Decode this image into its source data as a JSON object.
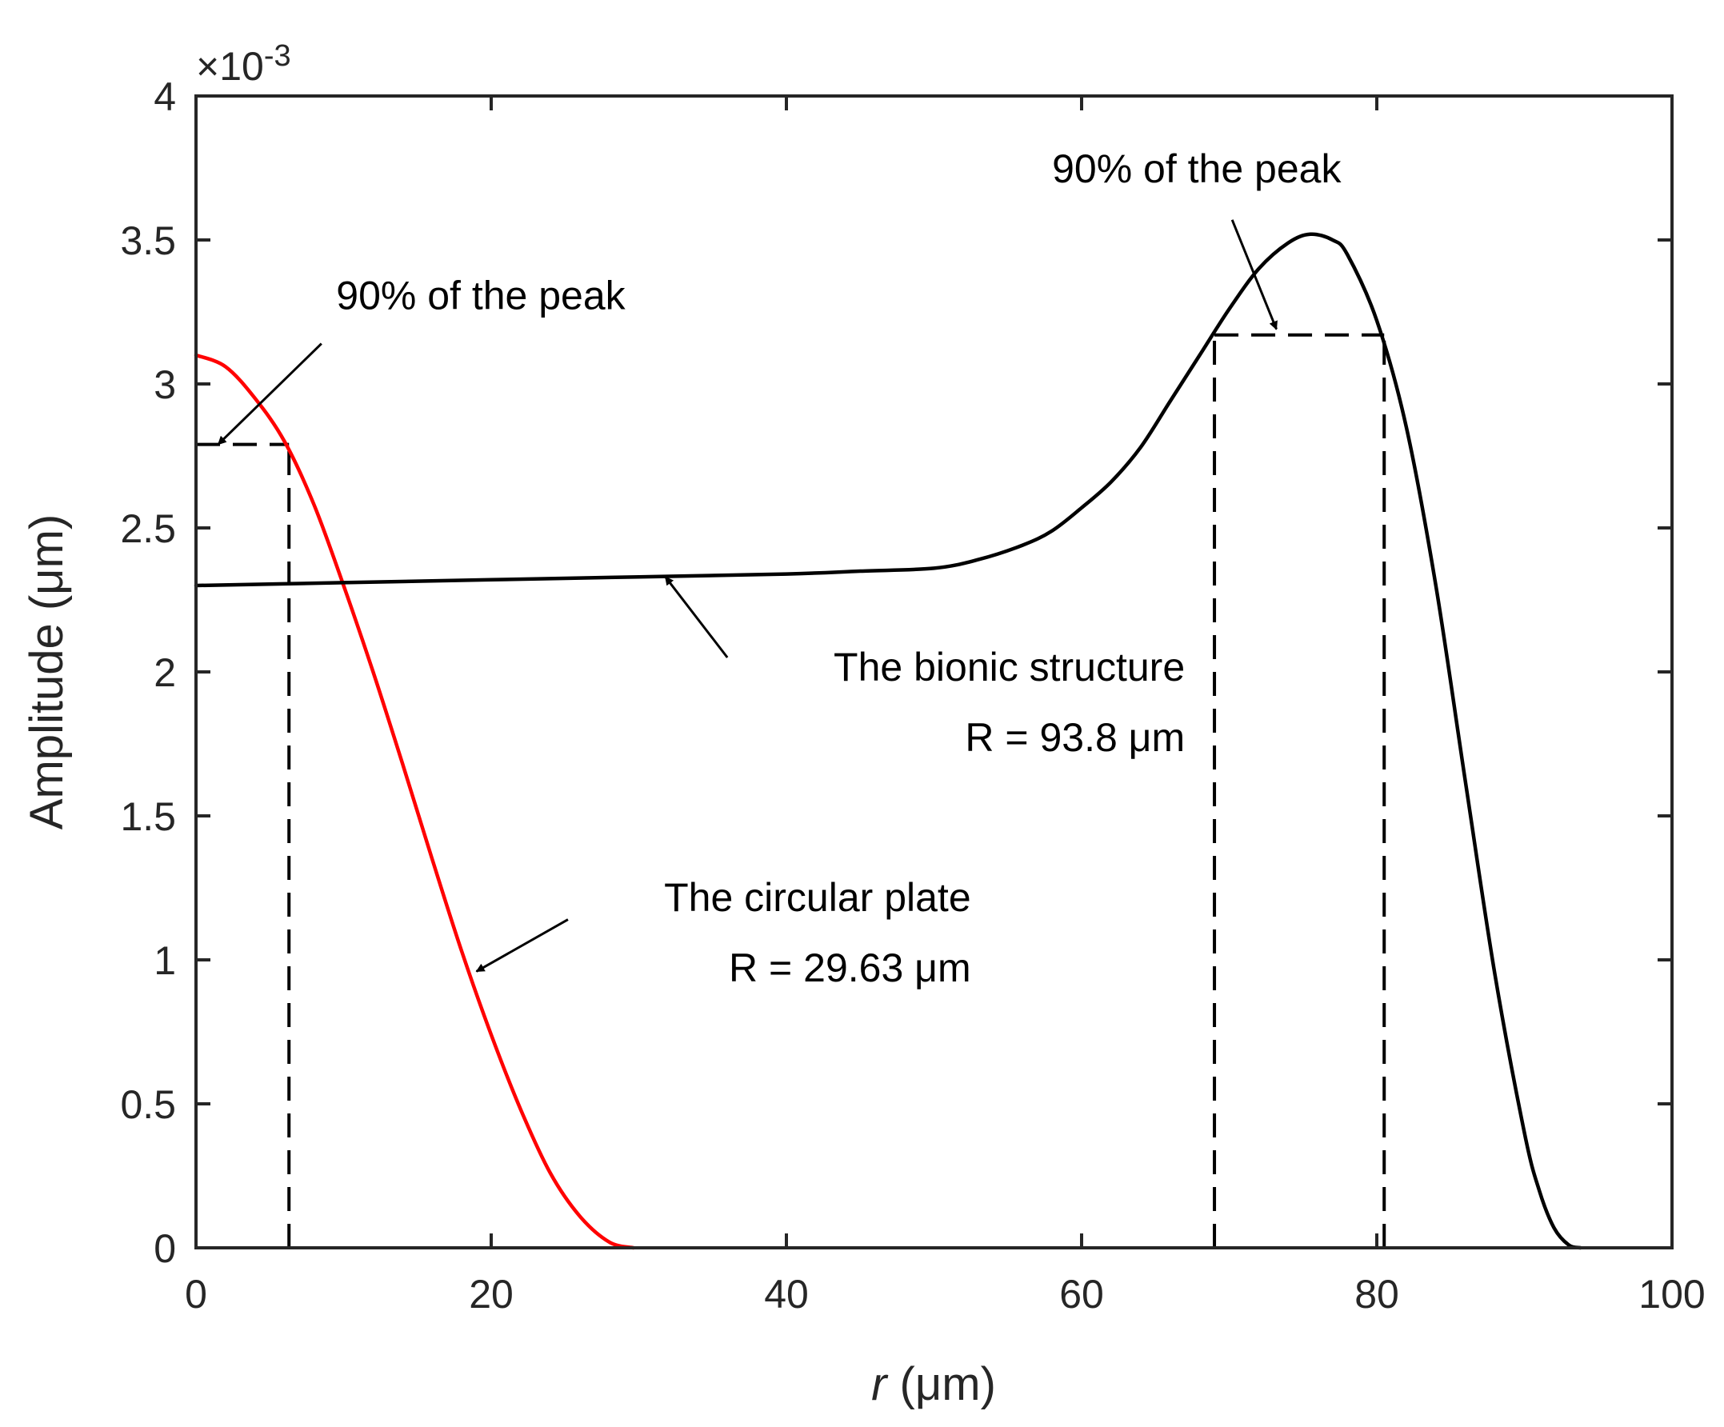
{
  "chart_data": {
    "type": "line",
    "title": "",
    "xlabel_var": "r",
    "xlabel_unit": " (μm)",
    "ylabel": "Amplitude (μm)",
    "y_multiplier": "×10",
    "y_exponent": "-3",
    "xlim": [
      0,
      100
    ],
    "ylim": [
      0,
      4
    ],
    "x_ticks": [
      0,
      20,
      40,
      60,
      80,
      100
    ],
    "y_ticks": [
      0,
      0.5,
      1,
      1.5,
      2,
      2.5,
      3,
      3.5,
      4
    ],
    "x_tick_labels": [
      "0",
      "20",
      "40",
      "60",
      "80",
      "100"
    ],
    "y_tick_labels": [
      "0",
      "0.5",
      "1",
      "1.5",
      "2",
      "2.5",
      "3",
      "3.5",
      "4"
    ],
    "grid": false,
    "series": [
      {
        "name": "The circular plate",
        "color": "#ff0000",
        "x": [
          0,
          2,
          4,
          6,
          8,
          10,
          12,
          14,
          16,
          18,
          20,
          22,
          24,
          26,
          28,
          29.63
        ],
        "y": [
          3.1,
          3.06,
          2.95,
          2.8,
          2.58,
          2.3,
          2.0,
          1.68,
          1.35,
          1.03,
          0.74,
          0.48,
          0.26,
          0.11,
          0.02,
          0.0
        ]
      },
      {
        "name": "The bionic structure",
        "color": "#000000",
        "x": [
          0,
          10,
          20,
          30,
          40,
          45,
          50,
          53,
          56,
          58,
          60,
          62,
          64,
          66,
          68,
          70,
          72,
          74,
          75.5,
          77,
          78,
          80,
          82,
          84,
          86,
          88,
          90,
          91,
          92,
          93,
          93.8
        ],
        "y": [
          2.3,
          2.31,
          2.32,
          2.33,
          2.34,
          2.35,
          2.36,
          2.39,
          2.44,
          2.49,
          2.57,
          2.66,
          2.78,
          2.94,
          3.1,
          3.26,
          3.4,
          3.49,
          3.52,
          3.5,
          3.45,
          3.22,
          2.85,
          2.3,
          1.62,
          0.95,
          0.4,
          0.2,
          0.07,
          0.01,
          0.0
        ]
      }
    ],
    "reference_lines": [
      {
        "x": [
          0,
          6.3
        ],
        "y": [
          2.79,
          2.79
        ]
      },
      {
        "x": [
          6.3,
          6.3
        ],
        "y": [
          0,
          2.79
        ]
      },
      {
        "x": [
          69,
          80.5
        ],
        "y": [
          3.17,
          3.17
        ]
      },
      {
        "x": [
          69,
          69
        ],
        "y": [
          0,
          3.17
        ]
      },
      {
        "x": [
          80.5,
          80.5
        ],
        "y": [
          0,
          3.17
        ]
      }
    ],
    "annotations": [
      {
        "id": "peak-left",
        "lines": [
          "90% of the peak"
        ],
        "anchor": "start",
        "text_at": [
          9.5,
          3.26
        ],
        "arrow_from": [
          8.5,
          3.14
        ],
        "arrow_to": [
          1.5,
          2.79
        ]
      },
      {
        "id": "peak-right",
        "lines": [
          "90% of the peak"
        ],
        "anchor": "start",
        "text_at": [
          58,
          3.7
        ],
        "arrow_from": [
          70.2,
          3.57
        ],
        "arrow_to": [
          73.2,
          3.19
        ]
      },
      {
        "id": "bionic",
        "lines": [
          "The bionic structure",
          "R = 93.8 μm"
        ],
        "anchor": "end",
        "text_at": [
          67,
          1.97
        ],
        "arrow_from": [
          36,
          2.05
        ],
        "arrow_to": [
          31.8,
          2.33
        ]
      },
      {
        "id": "plate",
        "lines": [
          "The circular plate",
          "R = 29.63 μm"
        ],
        "anchor": "end",
        "text_at": [
          52.5,
          1.17
        ],
        "arrow_from": [
          25.2,
          1.14
        ],
        "arrow_to": [
          19,
          0.96
        ]
      }
    ]
  }
}
